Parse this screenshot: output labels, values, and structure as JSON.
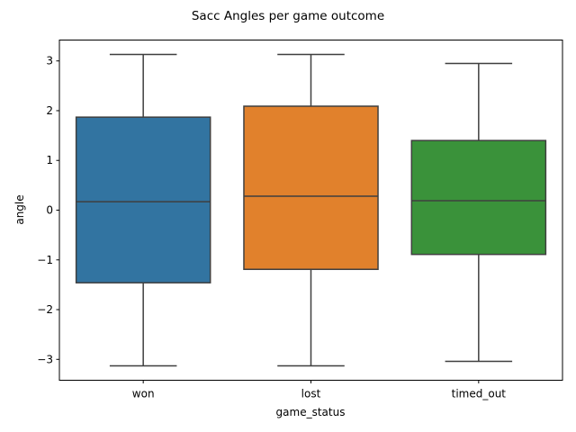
{
  "chart_data": {
    "type": "box",
    "title": "Sacc Angles per game outcome",
    "xlabel": "game_status",
    "ylabel": "angle",
    "ylim": [
      -3.42,
      3.42
    ],
    "yticks": [
      {
        "value": 3,
        "label": "3"
      },
      {
        "value": 2,
        "label": "2"
      },
      {
        "value": 1,
        "label": "1"
      },
      {
        "value": 0,
        "label": "0"
      },
      {
        "value": -1,
        "label": "−1"
      },
      {
        "value": -2,
        "label": "−2"
      },
      {
        "value": -3,
        "label": "−3"
      }
    ],
    "grid": false,
    "legend": "none",
    "categories": [
      "won",
      "lost",
      "timed_out"
    ],
    "boxes": [
      {
        "category": "won",
        "whisker_low": -3.13,
        "q1": -1.46,
        "median": 0.17,
        "q3": 1.87,
        "whisker_high": 3.13,
        "color": "#3274a1"
      },
      {
        "category": "lost",
        "whisker_low": -3.13,
        "q1": -1.19,
        "median": 0.28,
        "q3": 2.09,
        "whisker_high": 3.13,
        "color": "#e1812c"
      },
      {
        "category": "timed_out",
        "whisker_low": -3.04,
        "q1": -0.89,
        "median": 0.19,
        "q3": 1.4,
        "whisker_high": 2.95,
        "color": "#3a923a"
      }
    ],
    "line_color": "#3f3f3f"
  }
}
